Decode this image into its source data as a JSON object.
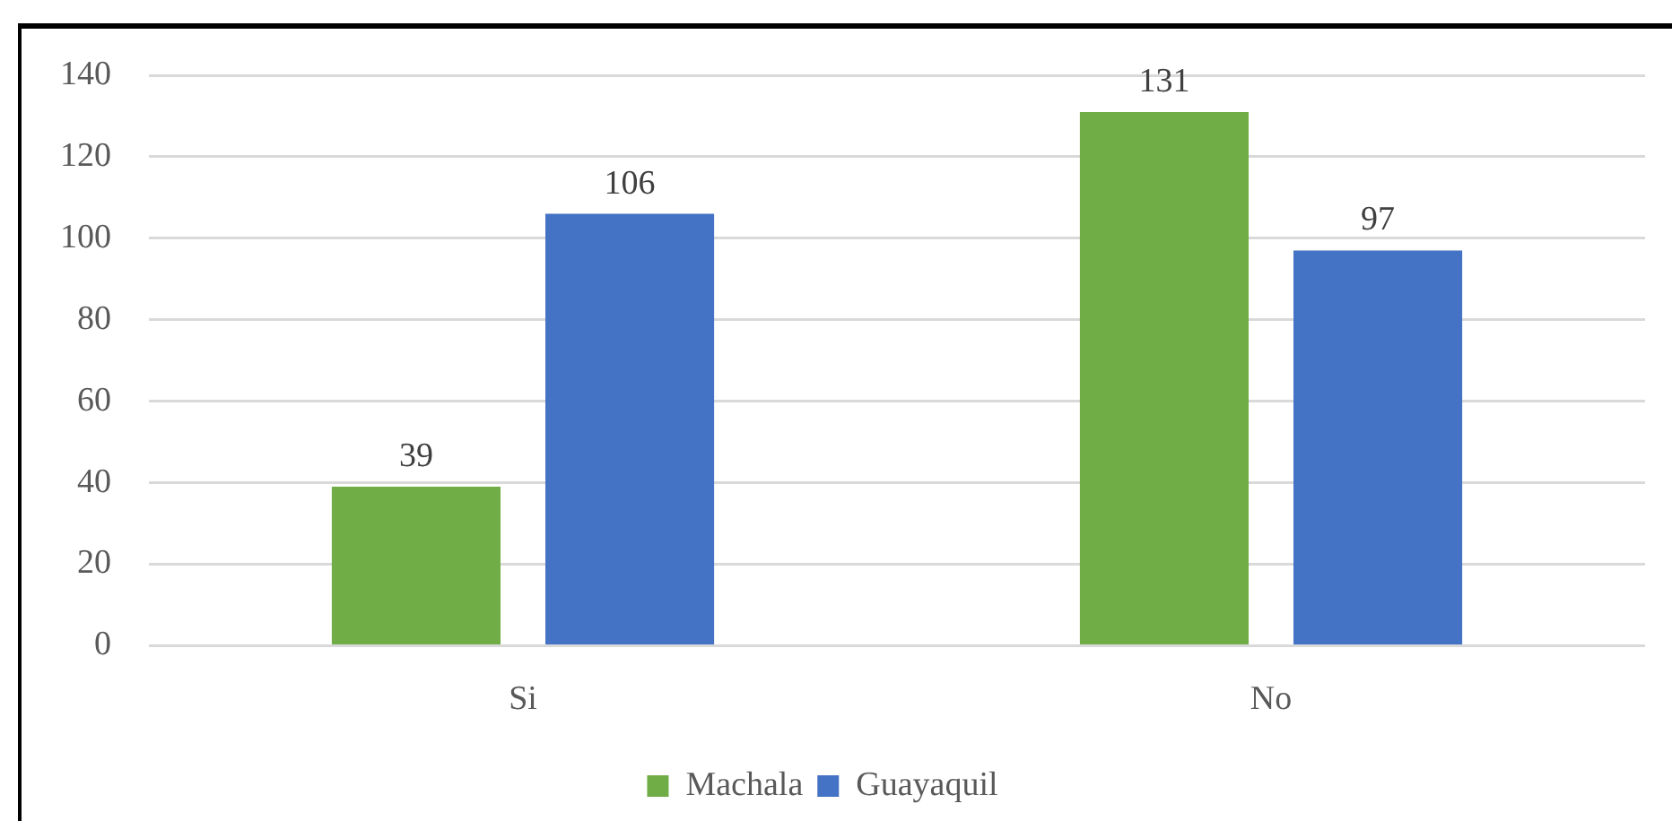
{
  "chart_data": {
    "type": "bar",
    "categories": [
      "Si",
      "No"
    ],
    "series": [
      {
        "name": "Machala",
        "color": "#70ad47",
        "values": [
          39,
          131
        ]
      },
      {
        "name": "Guayaquil",
        "color": "#4472c4",
        "values": [
          106,
          97
        ]
      }
    ],
    "ylim": [
      0,
      140
    ],
    "yticks": [
      0,
      20,
      40,
      60,
      80,
      100,
      120,
      140
    ],
    "grid": "y",
    "legend": "bottom",
    "data_labels": true
  }
}
